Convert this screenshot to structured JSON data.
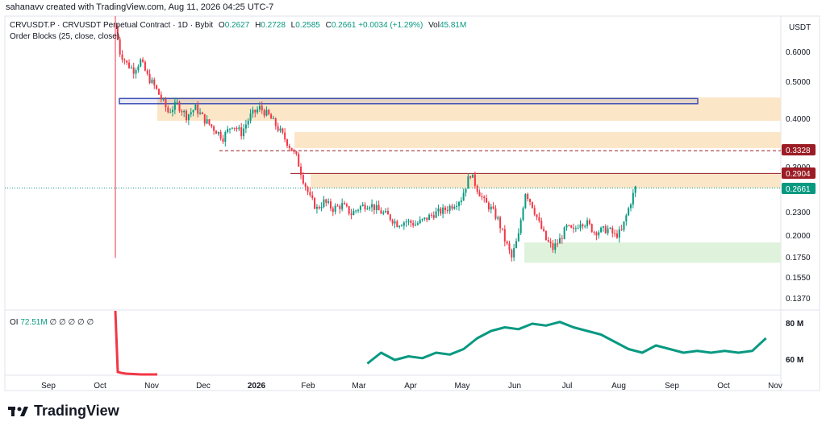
{
  "header": {
    "created_by": "sahanavv created with TradingView.com, Aug 11, 2026 04:25 UTC-7"
  },
  "legend": {
    "symbol": "CRVUSDT.P · CRVUSDT Perpetual Contract · 1D · Bybit",
    "open_label": "O",
    "open": "0.2627",
    "high_label": "H",
    "high": "0.2728",
    "low_label": "L",
    "low": "0.2585",
    "close_label": "C",
    "close": "0.2661",
    "change": "+0.0034 (+1.29%)",
    "vol_label": "Vol",
    "vol": "45.81M",
    "indicator": "Order Blocks (25, close, close)"
  },
  "oi_legend": {
    "label": "OI",
    "value": "72.51M",
    "symbols": "∅ ∅ ∅ ∅ ∅"
  },
  "footer": {
    "brand": "TradingView"
  },
  "colors": {
    "up": "#089981",
    "down": "#f23645",
    "ob_orange": "#fbe6c8",
    "ob_green": "#dff3dc",
    "box_blue": "#3f51b5",
    "line_red": "#9b1c24",
    "price_label": "#089981"
  },
  "chart_data": {
    "type": "candlestick",
    "currency": "USDT",
    "price_axis_ticks": [
      "0.6000",
      "0.5000",
      "0.4000",
      "0.3300",
      "0.3000",
      "0.2300",
      "0.2000",
      "0.1750",
      "0.1550",
      "0.1370"
    ],
    "price_labels": [
      {
        "value": "0.3328",
        "kind": "line"
      },
      {
        "value": "0.2904",
        "kind": "line"
      },
      {
        "value": "0.2661",
        "kind": "last"
      }
    ],
    "x_axis_ticks": [
      "Sep",
      "Oct",
      "Nov",
      "Dec",
      "2026",
      "Feb",
      "Mar",
      "Apr",
      "May",
      "Jun",
      "Jul",
      "Aug",
      "Sep",
      "Oct",
      "Nov"
    ],
    "order_blocks": [
      {
        "kind": "bearish",
        "top": 0.458,
        "bottom": 0.398
      },
      {
        "kind": "bearish",
        "top": 0.372,
        "bottom": 0.338
      },
      {
        "kind": "bearish",
        "top": 0.29,
        "bottom": 0.266
      },
      {
        "kind": "bullish",
        "top": 0.192,
        "bottom": 0.17
      }
    ],
    "highlight_box": {
      "top": 0.455,
      "bottom": 0.441
    },
    "horizontal_lines": [
      {
        "value": 0.3328,
        "style": "dashed"
      },
      {
        "value": 0.2904,
        "style": "solid"
      }
    ],
    "price_path": [
      [
        0,
        0.7
      ],
      [
        2,
        0.6
      ],
      [
        5,
        0.56
      ],
      [
        8,
        0.54
      ],
      [
        11,
        0.57
      ],
      [
        14,
        0.52
      ],
      [
        17,
        0.49
      ],
      [
        20,
        0.455
      ],
      [
        23,
        0.42
      ],
      [
        27,
        0.44
      ],
      [
        31,
        0.41
      ],
      [
        35,
        0.43
      ],
      [
        39,
        0.4
      ],
      [
        43,
        0.38
      ],
      [
        47,
        0.36
      ],
      [
        51,
        0.39
      ],
      [
        55,
        0.37
      ],
      [
        59,
        0.41
      ],
      [
        63,
        0.43
      ],
      [
        67,
        0.41
      ],
      [
        71,
        0.38
      ],
      [
        75,
        0.35
      ],
      [
        79,
        0.32
      ],
      [
        82,
        0.28
      ],
      [
        85,
        0.25
      ],
      [
        88,
        0.235
      ],
      [
        91,
        0.245
      ],
      [
        95,
        0.235
      ],
      [
        99,
        0.24
      ],
      [
        103,
        0.228
      ],
      [
        107,
        0.238
      ],
      [
        111,
        0.242
      ],
      [
        115,
        0.232
      ],
      [
        119,
        0.225
      ],
      [
        123,
        0.215
      ],
      [
        127,
        0.218
      ],
      [
        131,
        0.214
      ],
      [
        135,
        0.22
      ],
      [
        139,
        0.228
      ],
      [
        143,
        0.232
      ],
      [
        147,
        0.24
      ],
      [
        151,
        0.25
      ],
      [
        155,
        0.29
      ],
      [
        158,
        0.265
      ],
      [
        161,
        0.245
      ],
      [
        164,
        0.235
      ],
      [
        167,
        0.22
      ],
      [
        170,
        0.195
      ],
      [
        173,
        0.175
      ],
      [
        176,
        0.2
      ],
      [
        179,
        0.26
      ],
      [
        182,
        0.24
      ],
      [
        185,
        0.215
      ],
      [
        188,
        0.195
      ],
      [
        191,
        0.185
      ],
      [
        194,
        0.195
      ],
      [
        197,
        0.21
      ],
      [
        200,
        0.205
      ],
      [
        203,
        0.218
      ],
      [
        206,
        0.215
      ],
      [
        209,
        0.205
      ],
      [
        212,
        0.206
      ],
      [
        215,
        0.208
      ],
      [
        218,
        0.2
      ],
      [
        221,
        0.205
      ],
      [
        224,
        0.235
      ],
      [
        227,
        0.2661
      ]
    ],
    "oi_axis_ticks": [
      "80 M",
      "60 M"
    ],
    "oi_path": [
      [
        110,
        58
      ],
      [
        116,
        64
      ],
      [
        122,
        60
      ],
      [
        128,
        62
      ],
      [
        134,
        61
      ],
      [
        140,
        64
      ],
      [
        146,
        63
      ],
      [
        152,
        66
      ],
      [
        158,
        72
      ],
      [
        164,
        76
      ],
      [
        170,
        78
      ],
      [
        176,
        77
      ],
      [
        182,
        80
      ],
      [
        188,
        79
      ],
      [
        194,
        81
      ],
      [
        200,
        78
      ],
      [
        206,
        76
      ],
      [
        212,
        74
      ],
      [
        218,
        70
      ],
      [
        224,
        66
      ],
      [
        230,
        64
      ],
      [
        236,
        68
      ],
      [
        242,
        66
      ],
      [
        248,
        64
      ],
      [
        254,
        65
      ],
      [
        260,
        64
      ],
      [
        266,
        65
      ],
      [
        272,
        64
      ],
      [
        278,
        65
      ],
      [
        284,
        72
      ]
    ]
  }
}
